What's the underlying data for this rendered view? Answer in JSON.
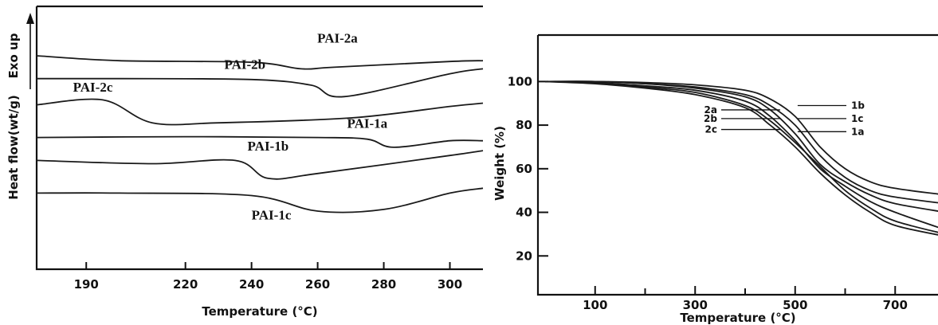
{
  "chart_data": [
    {
      "type": "line",
      "xlabel": "Temperature (°C)",
      "ylabel": "Heat flow(wt/g)",
      "y_annotation": "Exo up",
      "xlim": [
        175,
        310
      ],
      "xticks": [
        190,
        220,
        240,
        260,
        280,
        300
      ],
      "y_ticks_shown": false,
      "series": [
        {
          "name": "PAI-2a",
          "x": [
            175,
            200,
            240,
            255,
            265,
            300,
            310
          ],
          "y": [
            9.4,
            9.1,
            9.0,
            8.6,
            8.7,
            9.05,
            9.1
          ]
        },
        {
          "name": "PAI-2b",
          "x": [
            175,
            200,
            240,
            258,
            268,
            300,
            310
          ],
          "y": [
            8.0,
            8.0,
            7.95,
            7.6,
            6.9,
            8.3,
            8.6
          ]
        },
        {
          "name": "PAI-2c",
          "x": [
            175,
            195,
            210,
            230,
            270,
            300,
            310
          ],
          "y": [
            6.4,
            6.7,
            5.3,
            5.3,
            5.6,
            6.3,
            6.5
          ]
        },
        {
          "name": "PAI-1a",
          "x": [
            175,
            220,
            260,
            275,
            283,
            300,
            310
          ],
          "y": [
            4.4,
            4.45,
            4.4,
            4.3,
            3.8,
            4.2,
            4.2
          ]
        },
        {
          "name": "PAI-1b",
          "x": [
            175,
            210,
            235,
            245,
            260,
            300,
            310
          ],
          "y": [
            3.0,
            2.8,
            3.0,
            1.9,
            2.2,
            3.3,
            3.6
          ]
        },
        {
          "name": "PAI-1c",
          "x": [
            175,
            200,
            240,
            260,
            280,
            300,
            310
          ],
          "y": [
            1.0,
            1.0,
            0.85,
            -0.1,
            0.0,
            1.0,
            1.3
          ]
        }
      ]
    },
    {
      "type": "line",
      "xlabel": "Temperature (°C)",
      "ylabel": "Weight (%)",
      "xlim": [
        0,
        800
      ],
      "ylim": [
        0,
        110
      ],
      "xticks": [
        100,
        300,
        500,
        700
      ],
      "yticks": [
        20,
        40,
        60,
        80,
        100
      ],
      "series": [
        {
          "name": "1b",
          "x": [
            0,
            100,
            200,
            300,
            400,
            450,
            500,
            550,
            600,
            650,
            700,
            800
          ],
          "y": [
            100,
            100,
            99.5,
            98.5,
            96,
            92,
            84,
            70,
            60,
            54,
            51,
            48
          ]
        },
        {
          "name": "1c",
          "x": [
            0,
            100,
            200,
            300,
            400,
            450,
            500,
            550,
            600,
            650,
            700,
            800
          ],
          "y": [
            100,
            100,
            99,
            97.5,
            94,
            89,
            80,
            66,
            56,
            50,
            47,
            44
          ]
        },
        {
          "name": "1a",
          "x": [
            0,
            100,
            200,
            300,
            400,
            450,
            500,
            550,
            600,
            650,
            700,
            800
          ],
          "y": [
            100,
            100,
            99,
            97,
            93,
            87,
            76,
            62,
            54,
            48,
            44,
            40
          ]
        },
        {
          "name": "2a",
          "x": [
            0,
            100,
            200,
            300,
            400,
            450,
            500,
            550,
            600,
            650,
            700,
            800
          ],
          "y": [
            100,
            99.5,
            98,
            96,
            91,
            84,
            73,
            60,
            52,
            45,
            40,
            32
          ]
        },
        {
          "name": "2b",
          "x": [
            0,
            100,
            200,
            300,
            400,
            450,
            500,
            550,
            600,
            650,
            700,
            800
          ],
          "y": [
            100,
            99.5,
            97.5,
            95,
            89,
            82,
            72,
            61,
            50,
            42,
            36,
            30
          ]
        },
        {
          "name": "2c",
          "x": [
            0,
            100,
            200,
            300,
            400,
            450,
            500,
            550,
            600,
            650,
            700,
            800
          ],
          "y": [
            100,
            99,
            97,
            94,
            88,
            80,
            70,
            58,
            48,
            40,
            34,
            29
          ]
        }
      ]
    }
  ]
}
